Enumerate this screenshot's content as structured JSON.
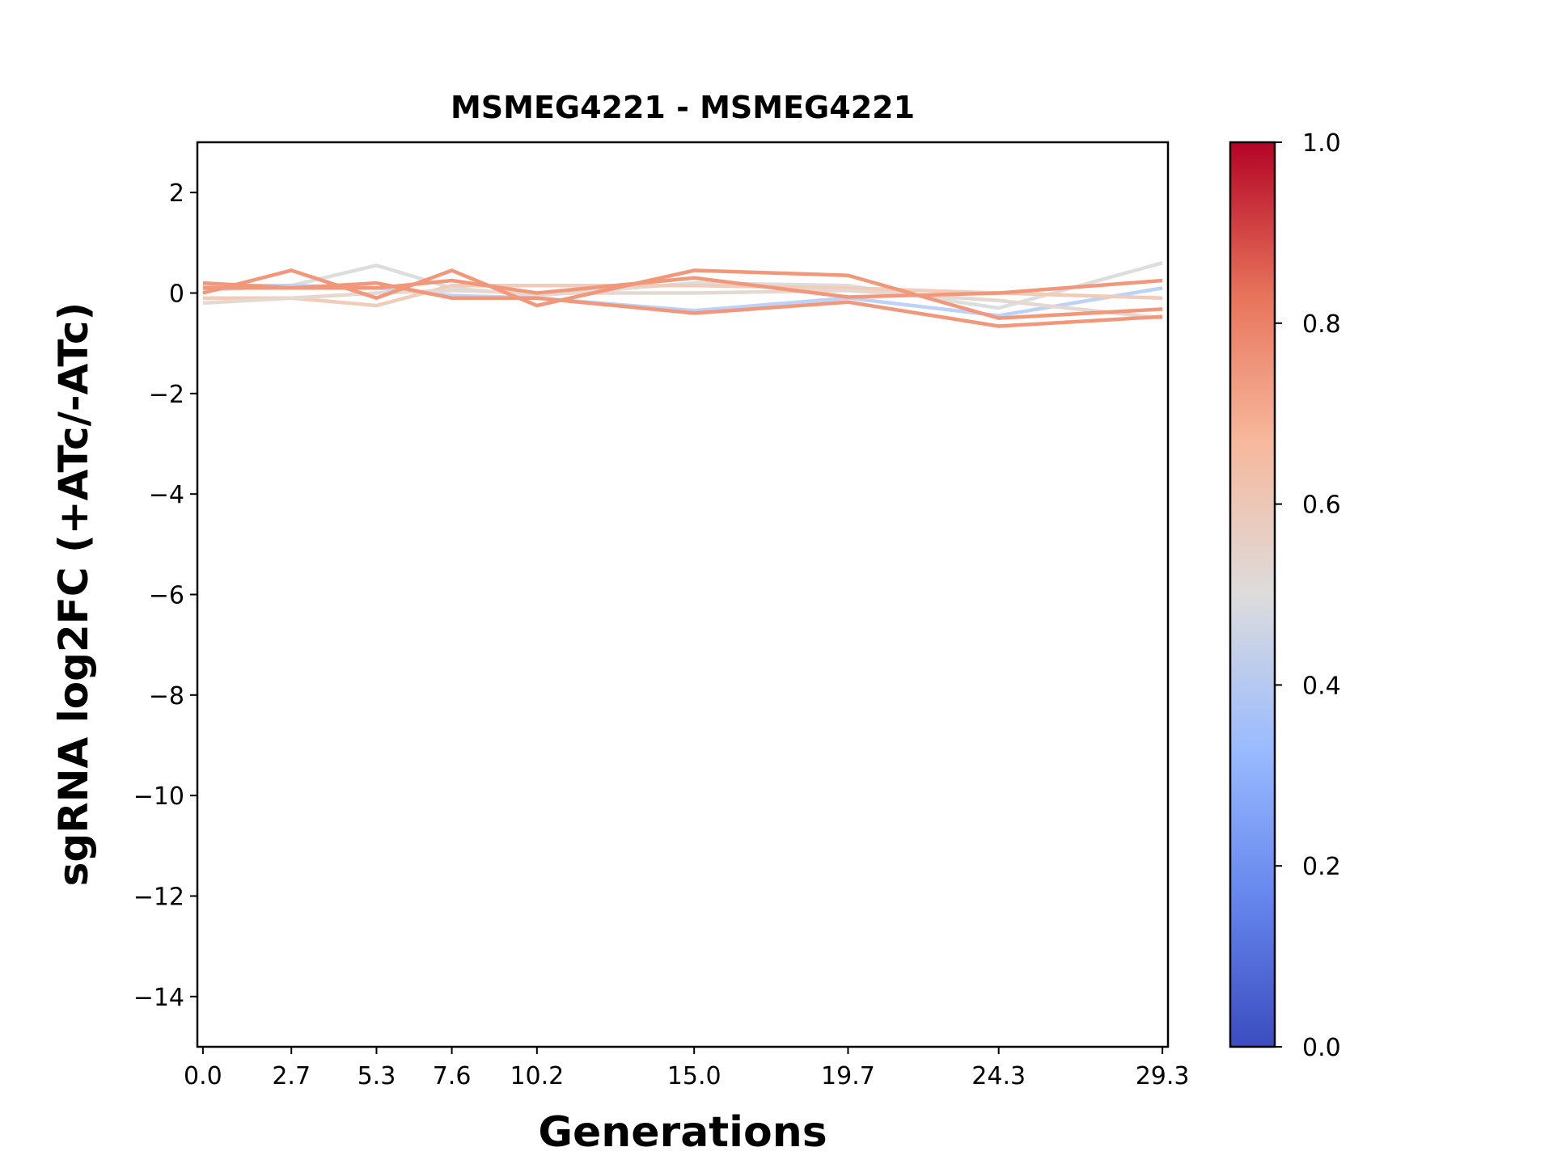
{
  "chart_data": {
    "type": "line",
    "title": "MSMEG4221 - MSMEG4221",
    "xlabel": "Generations",
    "ylabel": "sgRNA log2FC (+ATc/-ATc)",
    "x": [
      0.0,
      2.7,
      5.3,
      7.6,
      10.2,
      15.0,
      19.7,
      24.3,
      29.3
    ],
    "x_tick_labels": [
      "0.0",
      "2.7",
      "5.3",
      "7.6",
      "10.2",
      "15.0",
      "19.7",
      "24.3",
      "29.3"
    ],
    "xlim": [
      -0.17,
      29.47
    ],
    "ylim": [
      -15,
      3
    ],
    "y_ticks": [
      2,
      0,
      -2,
      -4,
      -6,
      -8,
      -10,
      -12,
      -14
    ],
    "y_tick_labels": [
      "2",
      "0",
      "−2",
      "−4",
      "−6",
      "−8",
      "−10",
      "−12",
      "−14"
    ],
    "grid": false,
    "colormap": "coolwarm",
    "colorbar": {
      "range": [
        0.0,
        1.0
      ],
      "tick_labels": [
        "0.0",
        "0.2",
        "0.4",
        "0.6",
        "0.8",
        "1.0"
      ],
      "colors": [
        "#3b4cc0",
        "#7b9ff9",
        "#c0d4f5",
        "#dddcdc",
        "#f2cbb7",
        "#ee8468",
        "#b40426"
      ]
    },
    "series": [
      {
        "color_value": 0.5,
        "color": "#dcdddd",
        "values": [
          0.05,
          0.15,
          0.55,
          0.1,
          -0.05,
          0.2,
          0.15,
          -0.3,
          0.6
        ]
      },
      {
        "color_value": 0.36,
        "color": "#bcd2f7",
        "values": [
          0.15,
          0.15,
          0.1,
          -0.05,
          -0.1,
          -0.35,
          -0.1,
          -0.45,
          0.1
        ]
      },
      {
        "color_value": 0.6,
        "color": "#f1ccb8",
        "values": [
          -0.1,
          -0.1,
          -0.25,
          0.15,
          0.15,
          0.15,
          0.1,
          0.0,
          -0.1
        ]
      },
      {
        "color_value": 0.55,
        "color": "#e5d8d1",
        "values": [
          -0.2,
          -0.1,
          0.0,
          0.05,
          0.0,
          0.0,
          0.05,
          -0.15,
          -0.5
        ]
      },
      {
        "color_value": 0.78,
        "color": "#f2977a",
        "values": [
          0.0,
          0.45,
          -0.1,
          0.45,
          -0.25,
          0.45,
          0.35,
          -0.5,
          -0.32
        ]
      },
      {
        "color_value": 0.78,
        "color": "#f2977a",
        "values": [
          0.2,
          0.1,
          0.2,
          -0.1,
          -0.1,
          -0.4,
          -0.18,
          -0.66,
          -0.47
        ]
      },
      {
        "color_value": 0.78,
        "color": "#f2977a",
        "values": [
          0.1,
          0.1,
          0.1,
          0.25,
          0.0,
          0.3,
          -0.08,
          0.0,
          0.25
        ]
      }
    ]
  }
}
